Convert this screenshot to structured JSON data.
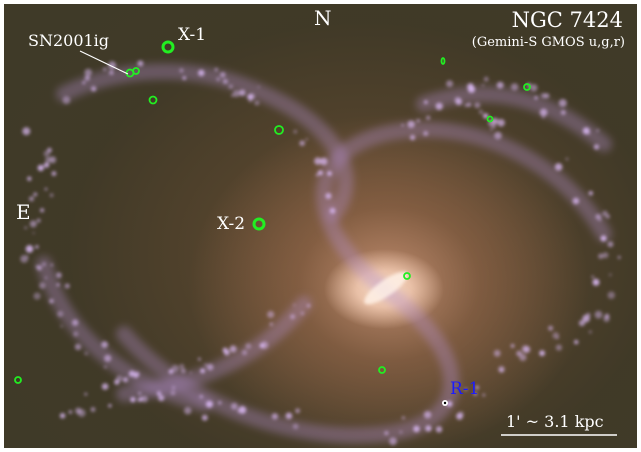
{
  "image": {
    "title": "NGC 7424",
    "subtitle": "(Gemini-S GMOS u,g,r)",
    "compass": {
      "north": "N",
      "east": "E"
    },
    "markers": {
      "supernova": "SN2001ig",
      "xray_1": "X-1",
      "xray_2": "X-2",
      "radio_1": "R-1"
    },
    "scale_bar": "1' ~ 3.1 kpc",
    "colors": {
      "background": "#3f3a28",
      "bulge": "#f7dcc6",
      "arms": "#c9a6e6",
      "marker": "#22ee22",
      "r1_label": "#1a1aff",
      "text": "#ffffff"
    }
  }
}
